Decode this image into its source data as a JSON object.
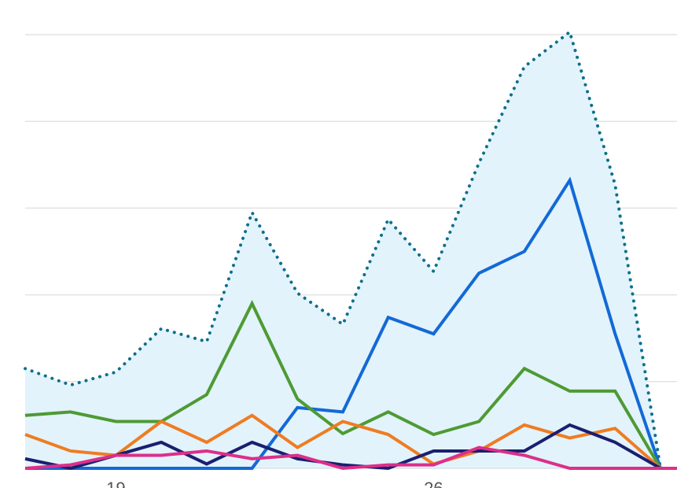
{
  "chart_data": {
    "type": "line",
    "x": [
      17,
      18,
      19,
      20,
      21,
      22,
      23,
      24,
      25,
      26,
      27,
      28,
      29,
      30,
      31
    ],
    "x_tick_labels": [
      {
        "x": 19,
        "label": "19"
      },
      {
        "x": 26,
        "label": "26"
      }
    ],
    "ylim": [
      0,
      50
    ],
    "grid_y": [
      10,
      20,
      30,
      40,
      50
    ],
    "grid": true,
    "legend": "none",
    "series": [
      {
        "style": "dotted",
        "fill": "#e2f3fb",
        "color": "#0e6f8c",
        "values": [
          11.5,
          9.6,
          11.1,
          16.1,
          14.6,
          29.5,
          20.2,
          16.6,
          28.7,
          22.7,
          35.2,
          46.3,
          50.3,
          32.7,
          0
        ]
      },
      {
        "style": "solid",
        "color": "#1369d6",
        "values": [
          0,
          0,
          0,
          0,
          0,
          0,
          7.0,
          6.5,
          17.4,
          15.5,
          22.5,
          25.0,
          33.2,
          15.5,
          0
        ]
      },
      {
        "style": "solid",
        "color": "#4e9a34",
        "values": [
          6.1,
          6.5,
          5.4,
          5.4,
          8.5,
          19.0,
          8.0,
          4.0,
          6.5,
          3.9,
          5.4,
          11.5,
          8.9,
          8.9,
          0
        ]
      },
      {
        "style": "solid",
        "color": "#ef7c22",
        "values": [
          3.9,
          2.0,
          1.5,
          5.4,
          3.0,
          6.1,
          2.4,
          5.4,
          3.9,
          0.5,
          2.0,
          5.0,
          3.5,
          4.6,
          0
        ]
      },
      {
        "style": "solid",
        "color": "#1a1f70",
        "values": [
          1.1,
          0,
          1.5,
          3.0,
          0.5,
          3.0,
          1.1,
          0.4,
          0,
          2.0,
          2.0,
          2.0,
          5.0,
          3.0,
          0
        ]
      },
      {
        "style": "solid",
        "color": "#dc2f89",
        "values": [
          0,
          0.4,
          1.5,
          1.5,
          2.0,
          1.1,
          1.5,
          0,
          0.4,
          0.4,
          2.4,
          1.5,
          0,
          0,
          0
        ]
      }
    ]
  }
}
